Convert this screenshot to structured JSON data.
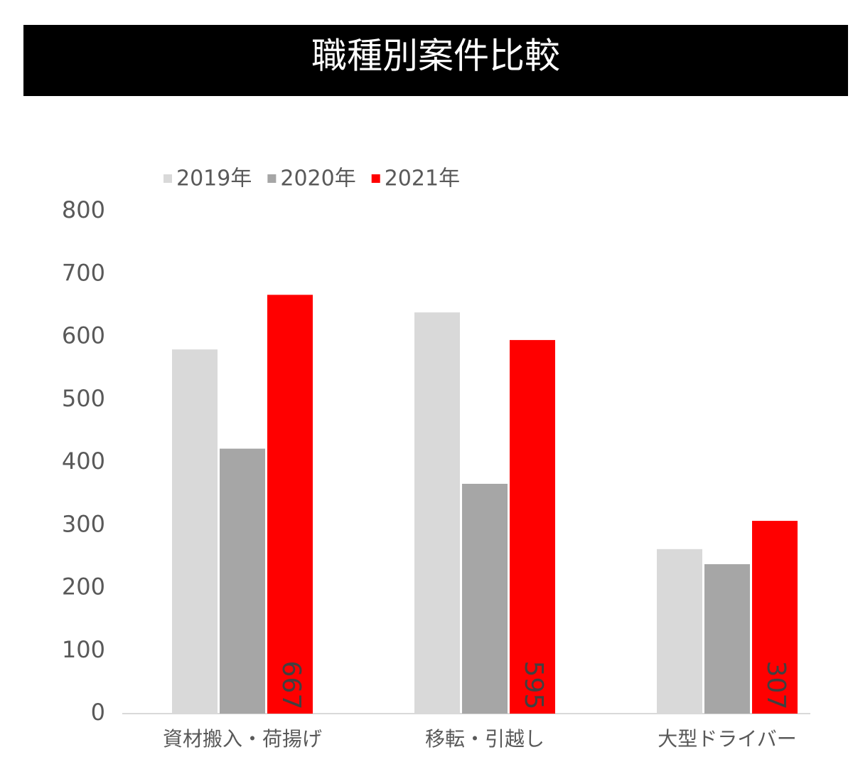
{
  "chart_data": {
    "type": "bar",
    "title": "職種別案件比較",
    "categories": [
      "資材搬入・荷揚げ",
      "移転・引越し",
      "大型ドライバー"
    ],
    "series": [
      {
        "name": "2019年",
        "color": "#d9d9d9",
        "values": [
          580,
          639,
          262
        ]
      },
      {
        "name": "2020年",
        "color": "#a6a6a6",
        "values": [
          422,
          366,
          238
        ]
      },
      {
        "name": "2021年",
        "color": "#ff0000",
        "values": [
          667,
          595,
          307
        ],
        "data_labels": true
      }
    ],
    "ylim": [
      0,
      800
    ],
    "yticks": [
      0,
      100,
      200,
      300,
      400,
      500,
      600,
      700,
      800
    ],
    "grid": false,
    "legend": "top"
  }
}
